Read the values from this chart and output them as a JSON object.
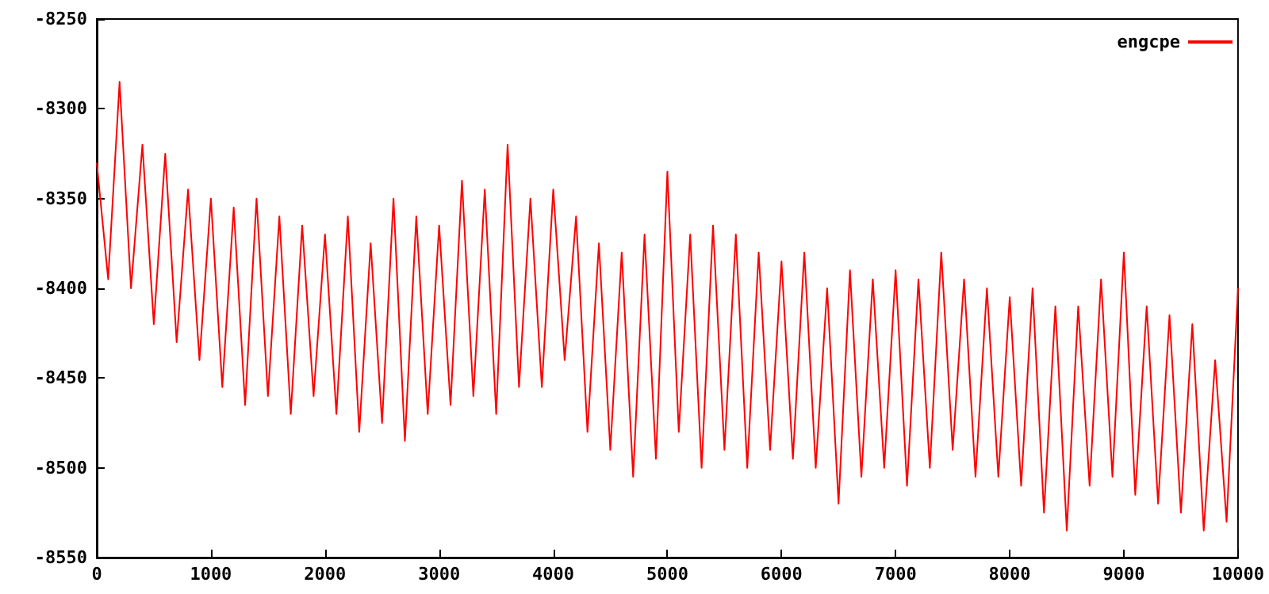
{
  "chart_data": {
    "type": "line",
    "x": [
      0,
      100,
      200,
      300,
      400,
      500,
      600,
      700,
      800,
      900,
      1000,
      1100,
      1200,
      1300,
      1400,
      1500,
      1600,
      1700,
      1800,
      1900,
      2000,
      2100,
      2200,
      2300,
      2400,
      2500,
      2600,
      2700,
      2800,
      2900,
      3000,
      3100,
      3200,
      3300,
      3400,
      3500,
      3600,
      3700,
      3800,
      3900,
      4000,
      4100,
      4200,
      4300,
      4400,
      4500,
      4600,
      4700,
      4800,
      4900,
      5000,
      5100,
      5200,
      5300,
      5400,
      5500,
      5600,
      5700,
      5800,
      5900,
      6000,
      6100,
      6200,
      6300,
      6400,
      6500,
      6600,
      6700,
      6800,
      6900,
      7000,
      7100,
      7200,
      7300,
      7400,
      7500,
      7600,
      7700,
      7800,
      7900,
      8000,
      8100,
      8200,
      8300,
      8400,
      8500,
      8600,
      8700,
      8800,
      8900,
      9000,
      9100,
      9200,
      9300,
      9400,
      9500,
      9600,
      9700,
      9800,
      9900,
      10000
    ],
    "series": [
      {
        "name": "engcpe",
        "color": "#ff0000",
        "values": [
          -8330,
          -8395,
          -8285,
          -8400,
          -8320,
          -8420,
          -8325,
          -8430,
          -8345,
          -8440,
          -8350,
          -8455,
          -8355,
          -8465,
          -8350,
          -8460,
          -8360,
          -8470,
          -8365,
          -8460,
          -8370,
          -8470,
          -8360,
          -8480,
          -8375,
          -8475,
          -8350,
          -8485,
          -8360,
          -8470,
          -8365,
          -8465,
          -8340,
          -8460,
          -8345,
          -8470,
          -8320,
          -8455,
          -8350,
          -8455,
          -8345,
          -8440,
          -8360,
          -8480,
          -8375,
          -8490,
          -8380,
          -8505,
          -8370,
          -8495,
          -8335,
          -8480,
          -8370,
          -8500,
          -8365,
          -8490,
          -8370,
          -8500,
          -8380,
          -8490,
          -8385,
          -8495,
          -8380,
          -8500,
          -8400,
          -8520,
          -8390,
          -8505,
          -8395,
          -8500,
          -8390,
          -8510,
          -8395,
          -8500,
          -8380,
          -8490,
          -8395,
          -8505,
          -8400,
          -8505,
          -8405,
          -8510,
          -8400,
          -8525,
          -8410,
          -8535,
          -8410,
          -8510,
          -8395,
          -8505,
          -8380,
          -8515,
          -8410,
          -8520,
          -8415,
          -8525,
          -8420,
          -8535,
          -8440,
          -8530,
          -8400
        ]
      }
    ],
    "xlim": [
      0,
      10000
    ],
    "xticks": [
      0,
      1000,
      2000,
      3000,
      4000,
      5000,
      6000,
      7000,
      8000,
      9000,
      10000
    ],
    "ylim": [
      -8550,
      -8250
    ],
    "yticks": [
      -8550,
      -8500,
      -8450,
      -8400,
      -8350,
      -8300,
      -8250
    ],
    "legend": "top right",
    "marker": "none",
    "line_style": "solid"
  }
}
